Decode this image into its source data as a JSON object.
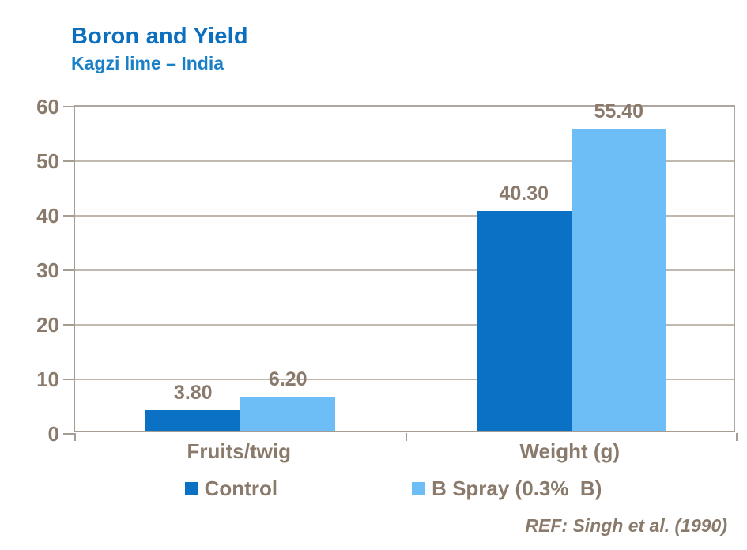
{
  "header": {
    "title": "Boron and Yield",
    "subtitle": "Kagzi lime – India"
  },
  "chart_data": {
    "type": "bar",
    "title": "Boron and Yield",
    "subtitle": "Kagzi lime – India",
    "categories": [
      "Fruits/twig",
      "Weight (g)"
    ],
    "series": [
      {
        "name": "Control",
        "color": "#0A71C4",
        "values": [
          3.8,
          40.3
        ],
        "labels": [
          "3.80",
          "40.30"
        ]
      },
      {
        "name": "B Spray (0.3%  B)",
        "color": "#6DBDF6",
        "values": [
          6.2,
          55.4
        ],
        "labels": [
          "6.20",
          "55.40"
        ]
      }
    ],
    "xlabel": "",
    "ylabel": "",
    "ylim": [
      0,
      60
    ],
    "yticks": [
      0,
      10,
      20,
      30,
      40,
      50,
      60
    ],
    "grid": true,
    "legend_position": "bottom"
  },
  "footer": {
    "ref": "REF: Singh et al. (1990)"
  },
  "colors": {
    "title_blue": "#0C6FBD",
    "subtitle_blue": "#1980C8",
    "text_brown": "#8A7A6B",
    "axis_line": "#A59D94",
    "gridline": "#C1B9B0",
    "plot_border": "#AFA79E",
    "bar_control": "#0A71C4",
    "bar_b_spray": "#6DBDF6"
  }
}
